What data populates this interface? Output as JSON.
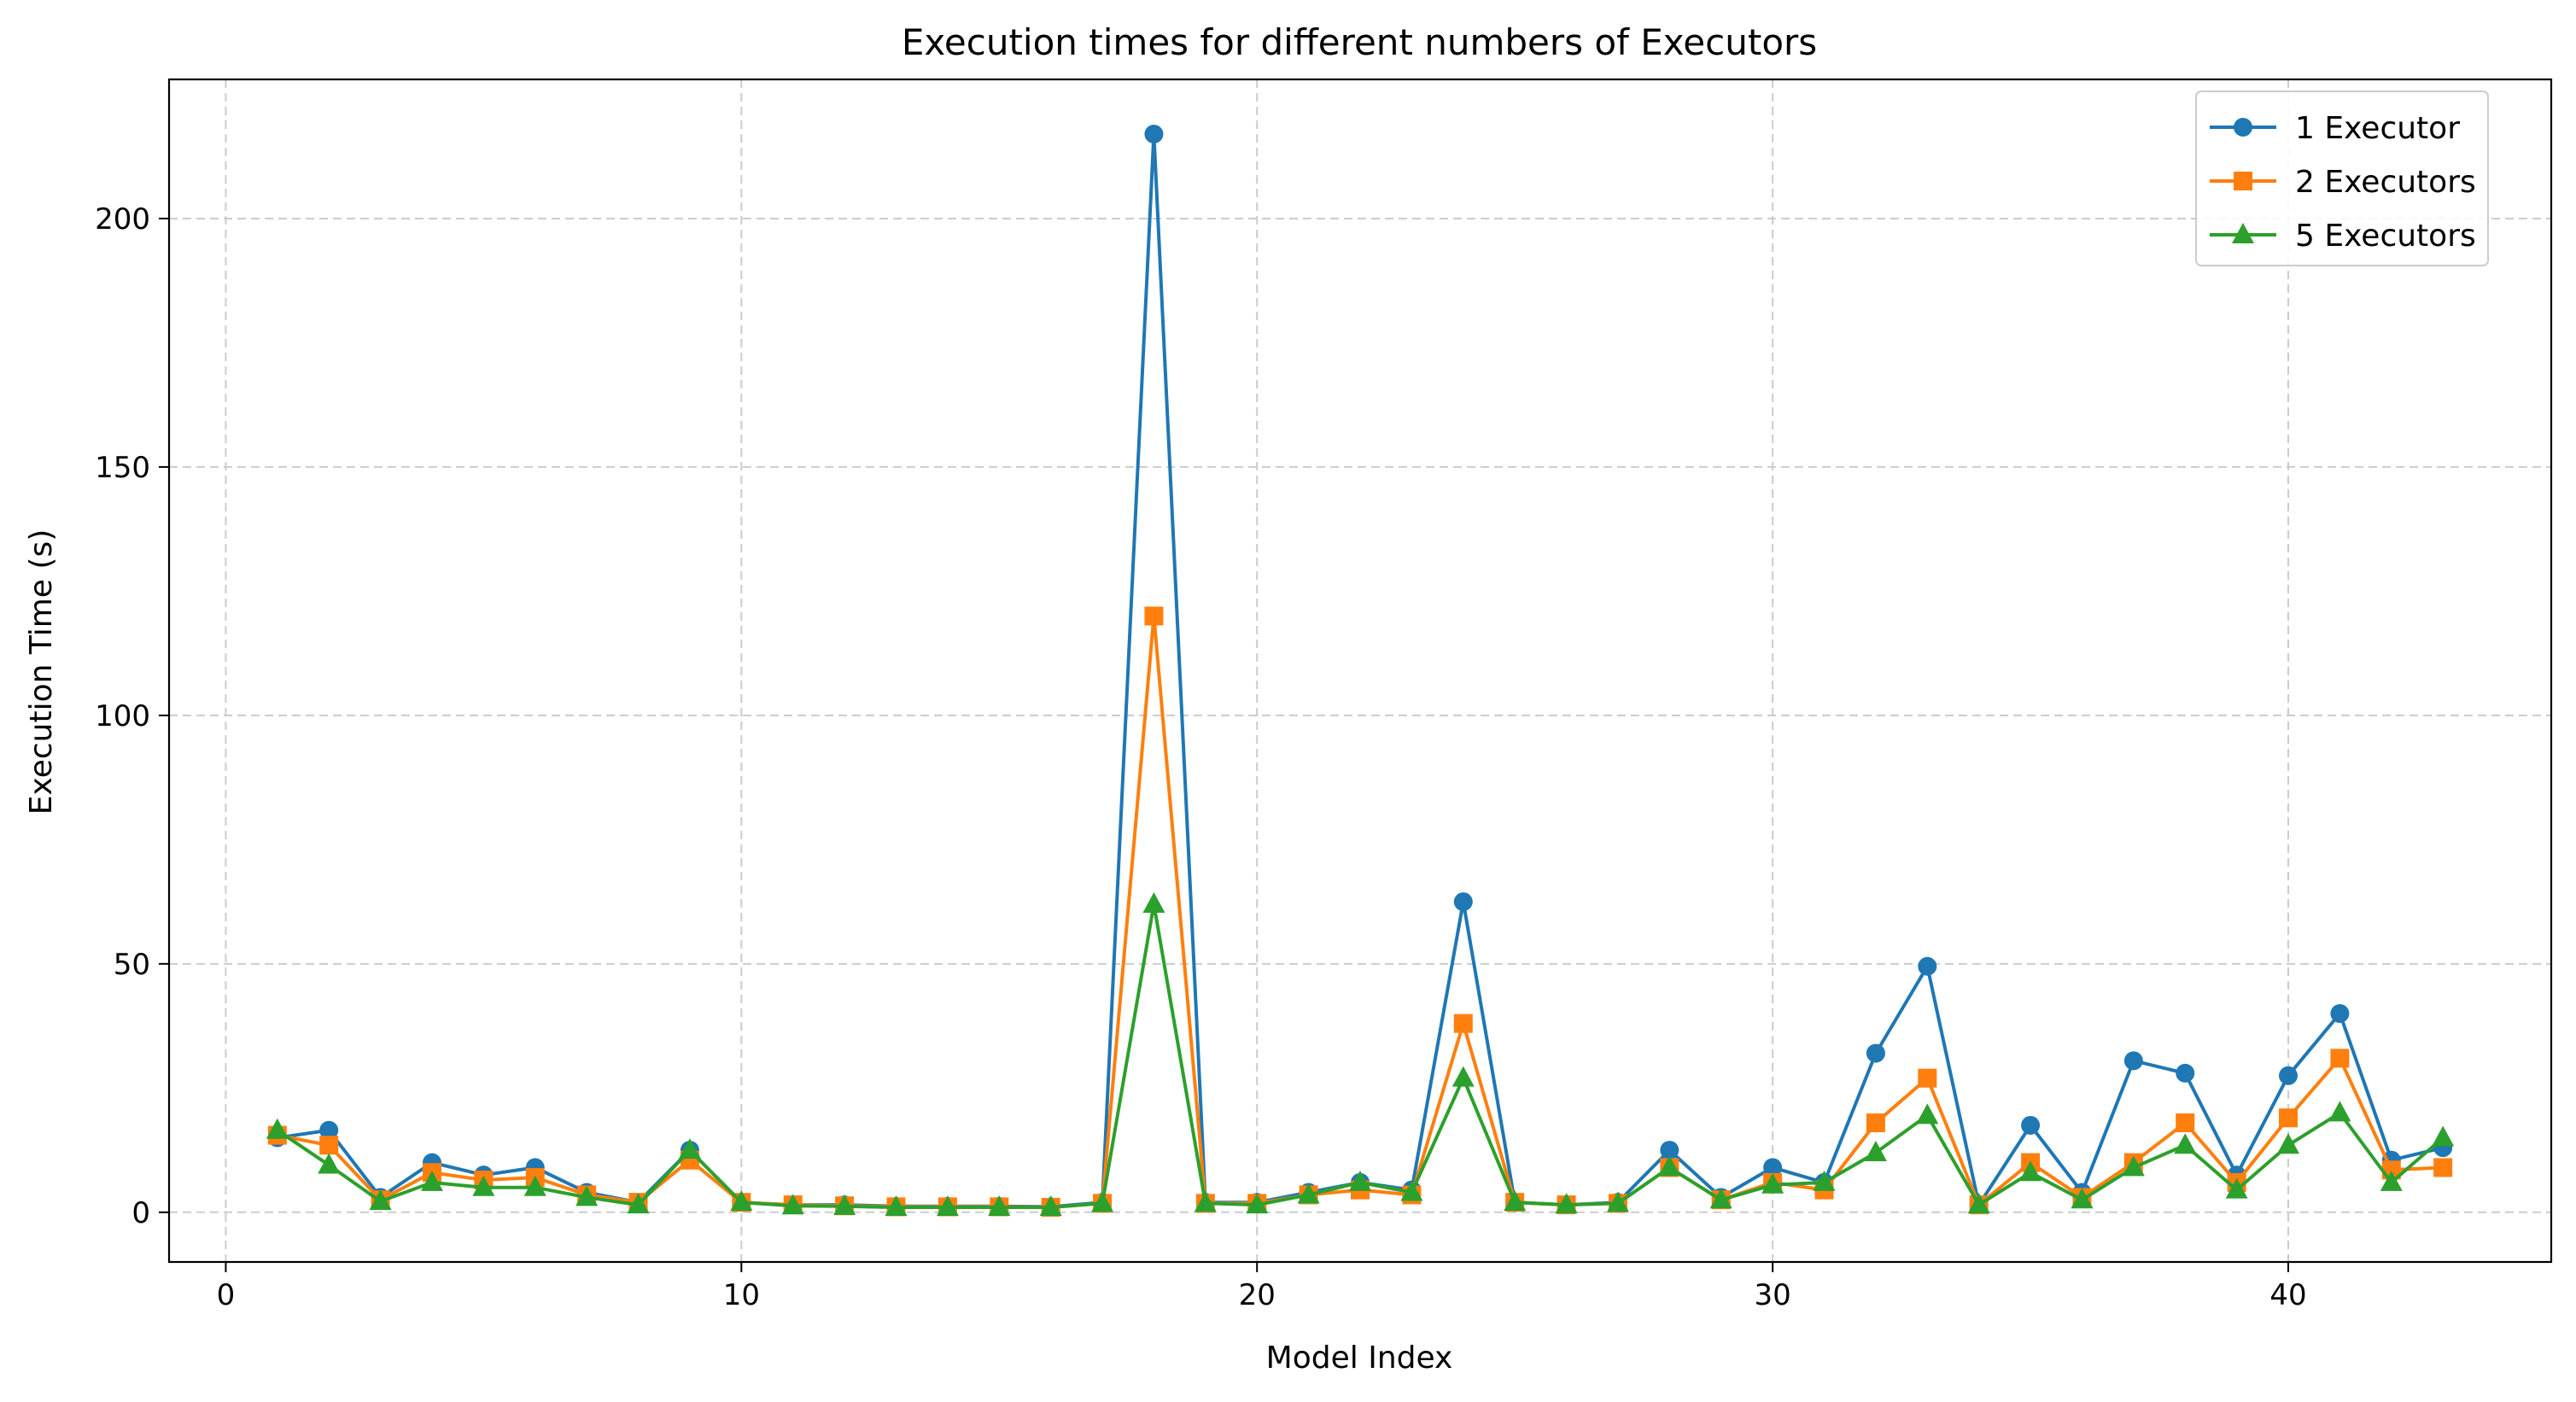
{
  "chart_data": {
    "type": "line",
    "title": "Execution times for different numbers of Executors",
    "xlabel": "Model Index",
    "ylabel": "Execution Time (s)",
    "xlim": [
      -1.1,
      45.1
    ],
    "ylim": [
      -10,
      228
    ],
    "xticks": [
      0,
      10,
      20,
      30,
      40
    ],
    "yticks": [
      0,
      50,
      100,
      150,
      200
    ],
    "grid": true,
    "legend_position": "top-right",
    "x": [
      1,
      2,
      3,
      4,
      5,
      6,
      7,
      8,
      9,
      10,
      11,
      12,
      13,
      14,
      15,
      16,
      17,
      18,
      19,
      20,
      21,
      22,
      23,
      24,
      25,
      26,
      27,
      28,
      29,
      30,
      31,
      32,
      33,
      34,
      35,
      36,
      37,
      38,
      39,
      40,
      41,
      42,
      43
    ],
    "series": [
      {
        "name": "1 Executor",
        "color": "#1f77b4",
        "marker": "circle",
        "values": [
          15,
          16.5,
          3,
          10,
          7.5,
          9,
          4,
          2,
          12.5,
          2,
          1.5,
          1.5,
          1.2,
          1.2,
          1.2,
          1.1,
          2,
          217,
          2,
          2,
          4,
          6,
          4.5,
          62.5,
          2,
          1.5,
          2,
          12.5,
          3,
          9,
          6,
          32,
          49.5,
          1.5,
          17.5,
          4,
          30.5,
          28,
          7.5,
          27.5,
          40,
          10.5,
          13
        ]
      },
      {
        "name": "2 Executors",
        "color": "#ff7f0e",
        "marker": "square",
        "values": [
          15.5,
          13.5,
          2.5,
          8,
          6.5,
          7,
          3.5,
          2,
          10.5,
          2,
          1.5,
          1.3,
          1.1,
          1.1,
          1.1,
          1,
          1.8,
          120,
          1.8,
          1.8,
          3.5,
          4.5,
          3.5,
          38,
          2,
          1.5,
          1.8,
          9,
          2.5,
          6,
          4.5,
          18,
          27,
          1.5,
          10,
          3,
          10,
          18,
          6,
          19,
          31,
          8.5,
          9
        ]
      },
      {
        "name": "5 Executors",
        "color": "#2ca02c",
        "marker": "triangle",
        "values": [
          16.5,
          9.5,
          2.2,
          6,
          5,
          5,
          3,
          1.5,
          12.5,
          2,
          1.3,
          1.2,
          1,
          1,
          1,
          1,
          1.8,
          62,
          1.8,
          1.5,
          3.5,
          6,
          4,
          27,
          2,
          1.5,
          1.8,
          9,
          2.5,
          5.5,
          6,
          12,
          19.5,
          1.5,
          8,
          2.5,
          9,
          13.5,
          4.5,
          13.5,
          20,
          6,
          15
        ]
      }
    ]
  }
}
